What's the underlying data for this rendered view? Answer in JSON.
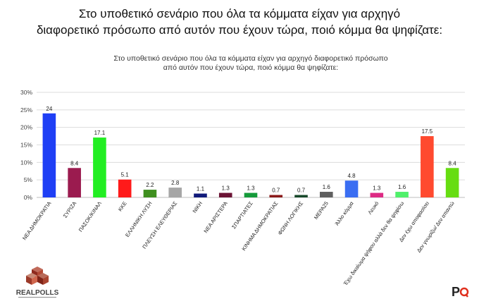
{
  "headline": {
    "line1": "Στο υποθετικό σενάριο που όλα τα κόμματα είχαν για αρχηγό",
    "line2": "διαφορετικό πρόσωπο από αυτόν που έχουν τώρα, ποιό κόμμα θα ψηφίζατε:"
  },
  "chart_data": {
    "type": "bar",
    "title_lines": [
      "Στο υποθετικό σενάριο που όλα τα κόμματα είχαν για αρχηγό διαφορετικό πρόσωπο",
      "από αυτόν που έχουν τώρα, ποιό κόμμα θα ψηφίζατε:"
    ],
    "categories": [
      "ΝΕΑ ΔΗΜΟΚΡΑΤΙΑ",
      "ΣΥΡΙΖΑ",
      "ΠΑΣΟΚ/ΚΙΝΑΛ",
      "ΚΚΕ",
      "ΕΛΛΗΝΙΚΗ ΛΥΣΗ",
      "ΠΛΕΥΣΗ ΕΛΕΥΘΕΡΙΑΣ",
      "ΝΙΚΗ",
      "ΝΕΑ ΑΡΙΣΤΕΡΑ",
      "ΣΠΑΡΤΙΑΤΕΣ",
      "ΚΙΝΗΜΑ ΔΗΜΟΚΡΑΤΙΑΣ",
      "ΦΩΝΗ ΛΟΓΙΚΗΣ",
      "ΜΕΡΑ25",
      "Άλλο κόμμα",
      "Λευκό",
      "Έχω δικαίωμα ψήφου αλλά δεν θα ψηφίσω",
      "Δεν έχω αποφασίσει",
      "Δεν γνωρίζω/ Δεν απαντώ"
    ],
    "values": [
      24,
      8.4,
      17.1,
      5.1,
      2.2,
      2.8,
      1.1,
      1.3,
      1.3,
      0.7,
      0.7,
      1.6,
      4.8,
      1.3,
      1.6,
      17.5,
      8.4
    ],
    "value_labels": [
      "24",
      "8.4",
      "17.1",
      "5.1",
      "2.2",
      "2.8",
      "1.1",
      "1.3",
      "1.3",
      "0.7",
      "0.7",
      "1.6",
      "4.8",
      "1.3",
      "1.6",
      "17.5",
      "8.4"
    ],
    "colors": [
      "#1f3ff5",
      "#9b1b4f",
      "#22ee22",
      "#ff1a1a",
      "#3f8f1f",
      "#a6a6a6",
      "#101a7a",
      "#6b1335",
      "#159a3a",
      "#8b1a1a",
      "#17482a",
      "#5f5f5f",
      "#3a6ef2",
      "#dd2a84",
      "#4ff06a",
      "#ff4a2f",
      "#66dd11"
    ],
    "ylim": [
      0,
      30
    ],
    "yticks": [
      0,
      5,
      10,
      15,
      20,
      25,
      30
    ],
    "ytick_labels": [
      "0%",
      "5%",
      "10%",
      "15%",
      "20%",
      "25%",
      "30%"
    ],
    "grid": true,
    "legend": "none"
  },
  "logos": {
    "left": "REALPOLLS",
    "right": "P"
  }
}
